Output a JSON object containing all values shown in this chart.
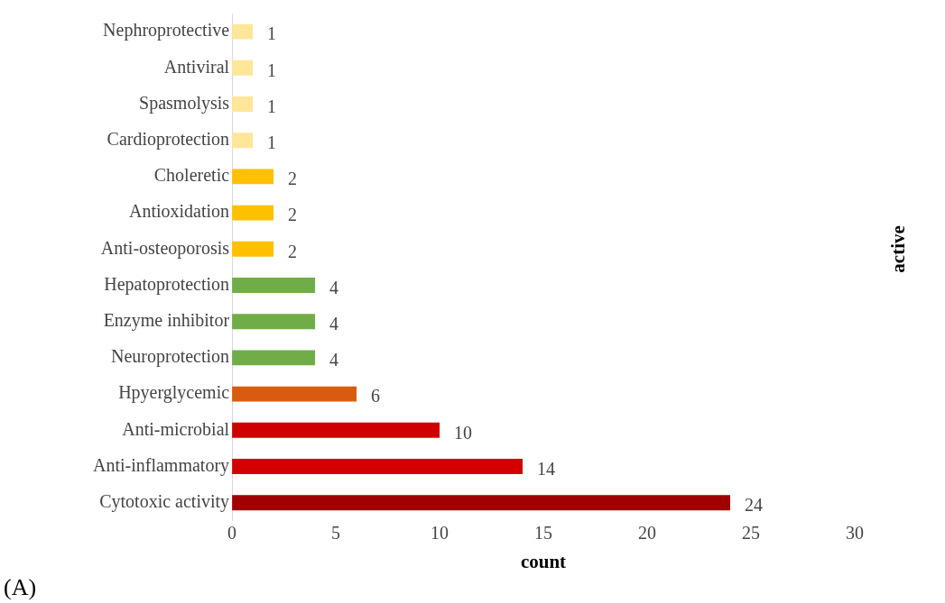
{
  "chart_data": {
    "type": "bar",
    "orientation": "horizontal",
    "categories": [
      "Nephroprotective",
      "Antiviral",
      "Spasmolysis",
      "Cardioprotection",
      "Choleretic",
      "Antioxidation",
      "Anti-osteoporosis",
      "Hepatoprotection",
      "Enzyme inhibitor",
      "Neuroprotection",
      "Hpyerglycemic",
      "Anti-microbial",
      "Anti-inflammatory",
      "Cytotoxic activity"
    ],
    "values": [
      1,
      1,
      1,
      1,
      2,
      2,
      2,
      4,
      4,
      4,
      6,
      10,
      14,
      24
    ],
    "colors": [
      "#ffe699",
      "#ffe699",
      "#ffe699",
      "#ffe699",
      "#ffc000",
      "#ffc000",
      "#ffc000",
      "#70ad47",
      "#70ad47",
      "#70ad47",
      "#d85c10",
      "#d00000",
      "#d40000",
      "#a00000"
    ],
    "xlim": [
      0,
      30
    ],
    "xticks": [
      0,
      5,
      10,
      15,
      20,
      25,
      30
    ],
    "xlabel": "count",
    "y2label": "active",
    "data_labels": true,
    "grid": false,
    "legend": false,
    "annotations": [
      "(A)"
    ]
  }
}
